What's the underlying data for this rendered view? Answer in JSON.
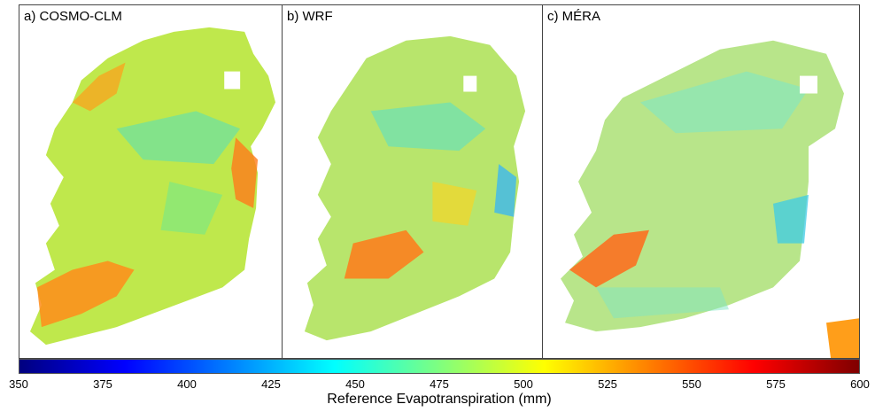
{
  "panels": [
    {
      "label": "a) COSMO-CLM"
    },
    {
      "label": "b) WRF"
    },
    {
      "label": "c) MÉRA"
    }
  ],
  "colorbar": {
    "title": "Reference Evapotranspiration (mm)",
    "min": 350,
    "max": 600,
    "ticks": [
      "350",
      "375",
      "400",
      "425",
      "450",
      "475",
      "500",
      "525",
      "550",
      "575",
      "600"
    ],
    "colors": [
      "#00007f",
      "#0000ff",
      "#007fff",
      "#00ffff",
      "#7fff7f",
      "#ffff00",
      "#ff7f00",
      "#ff0000",
      "#7f0000"
    ]
  },
  "land_colors": {
    "interior": "#a6e65a",
    "west_coast": "#ff8c1a",
    "east_coast": "#ff5a1a",
    "uplands": "#3ccbe6"
  }
}
